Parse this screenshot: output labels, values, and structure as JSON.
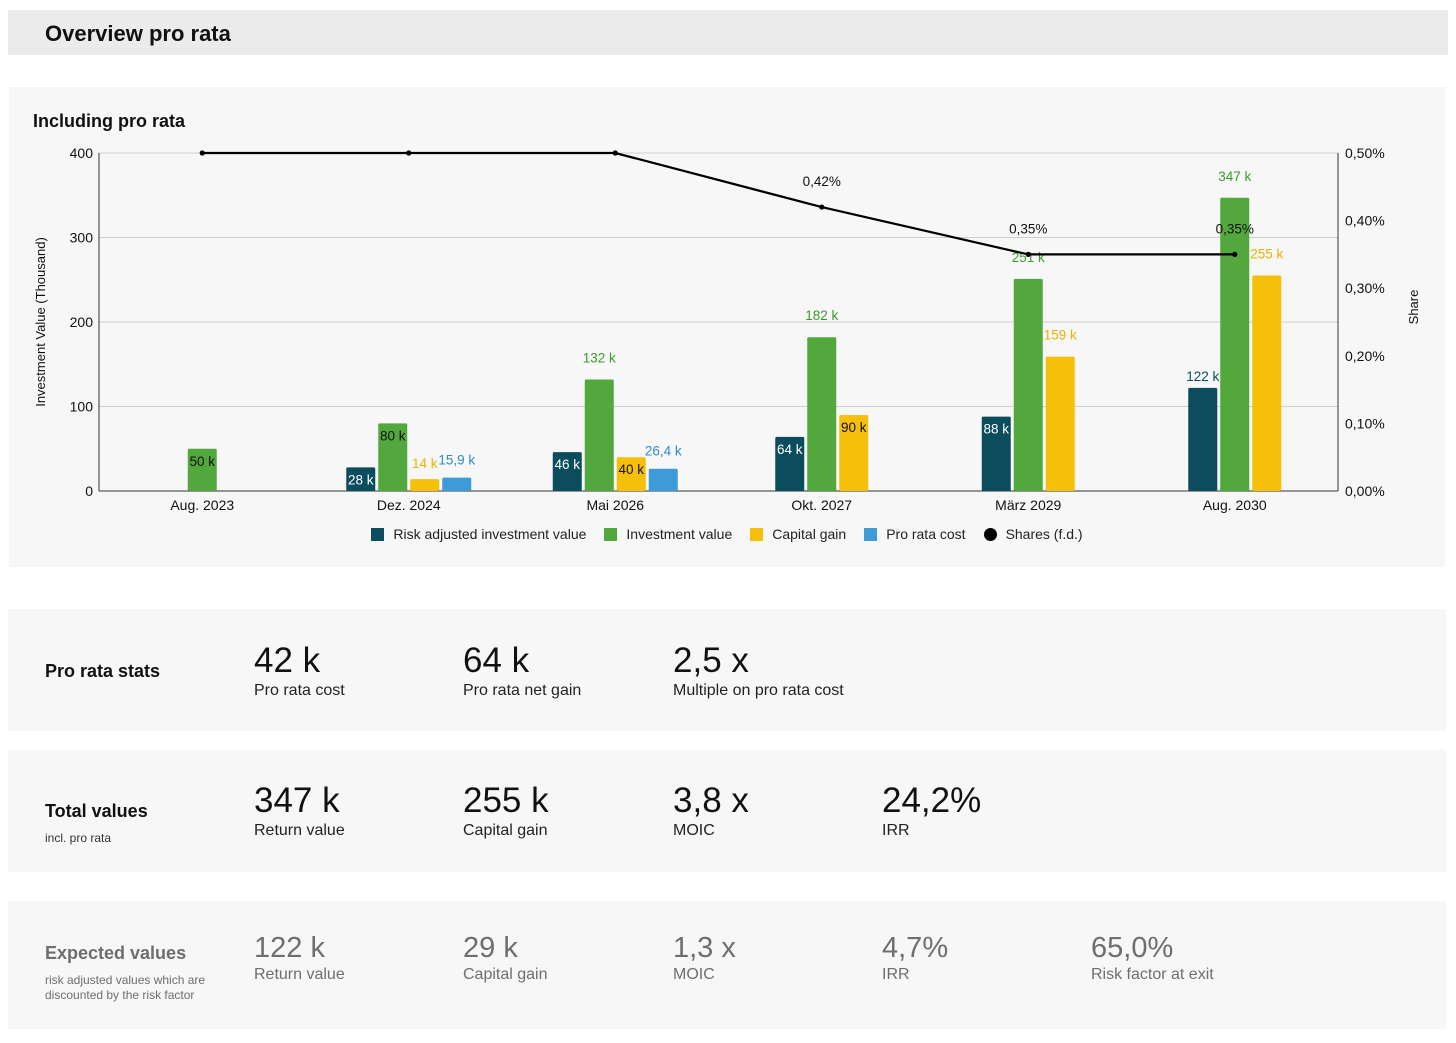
{
  "header": {
    "title": "Overview pro rata"
  },
  "chart_panel": {
    "title": "Including pro rata"
  },
  "chart_data": {
    "type": "bar",
    "categories": [
      "Aug. 2023",
      "Dez. 2024",
      "Mai 2026",
      "Okt. 2027",
      "März 2029",
      "Aug. 2030"
    ],
    "ylabel": "Investment Value (Thousand)",
    "ylabel_right": "Share",
    "ylim": [
      0,
      400
    ],
    "yticks": [
      "0",
      "100",
      "200",
      "300",
      "400"
    ],
    "ylim_right": [
      0,
      0.5
    ],
    "yticks_right": [
      "0,00%",
      "0,10%",
      "0,20%",
      "0,30%",
      "0,40%",
      "0,50%"
    ],
    "grid": true,
    "legend_position": "bottom",
    "series": [
      {
        "name": "Risk adjusted investment value",
        "color": "#0b4d5c",
        "values": [
          0,
          28,
          46,
          64,
          88,
          122
        ],
        "labels": [
          "",
          "28 k",
          "46 k",
          "64 k",
          "88 k",
          "122 k"
        ]
      },
      {
        "name": "Investment value",
        "color": "#52a83c",
        "values": [
          50,
          80,
          132,
          182,
          251,
          347
        ],
        "labels": [
          "50 k",
          "80 k",
          "132 k",
          "182 k",
          "251 k",
          "347 k"
        ]
      },
      {
        "name": "Capital gain",
        "color": "#f5bf0a",
        "values": [
          0,
          14,
          40,
          90,
          159,
          255
        ],
        "labels": [
          "",
          "14 k",
          "40 k",
          "90 k",
          "159 k",
          "255 k"
        ]
      },
      {
        "name": "Pro rata cost",
        "color": "#3f9ad8",
        "values": [
          0,
          15.9,
          26.4,
          0,
          0,
          0
        ],
        "labels": [
          "",
          "15,9 k",
          "26,4 k",
          "",
          "",
          ""
        ]
      }
    ],
    "line": {
      "name": "Shares (f.d.)",
      "color": "#000000",
      "values": [
        0.5,
        0.5,
        0.5,
        0.42,
        0.35,
        0.35
      ],
      "labels": [
        "",
        "",
        "",
        "0,42%",
        "0,35%",
        "0,35%"
      ]
    }
  },
  "pro_rata_stats": {
    "label": "Pro rata stats",
    "items": [
      {
        "value": "42 k",
        "label": "Pro rata cost"
      },
      {
        "value": "64 k",
        "label": "Pro rata net gain"
      },
      {
        "value": "2,5 x",
        "label": "Multiple on pro rata cost"
      }
    ]
  },
  "total_values": {
    "label": "Total values",
    "sub": "incl. pro rata",
    "items": [
      {
        "value": "347 k",
        "label": "Return value"
      },
      {
        "value": "255 k",
        "label": "Capital gain"
      },
      {
        "value": "3,8 x",
        "label": "MOIC"
      },
      {
        "value": "24,2%",
        "label": "IRR"
      }
    ]
  },
  "expected_values": {
    "label": "Expected values",
    "sub": "risk adjusted values which are discounted by the risk factor",
    "items": [
      {
        "value": "122 k",
        "label": "Return value"
      },
      {
        "value": "29 k",
        "label": "Capital gain"
      },
      {
        "value": "1,3 x",
        "label": "MOIC"
      },
      {
        "value": "4,7%",
        "label": "IRR"
      },
      {
        "value": "65,0%",
        "label": "Risk factor at exit"
      }
    ]
  }
}
